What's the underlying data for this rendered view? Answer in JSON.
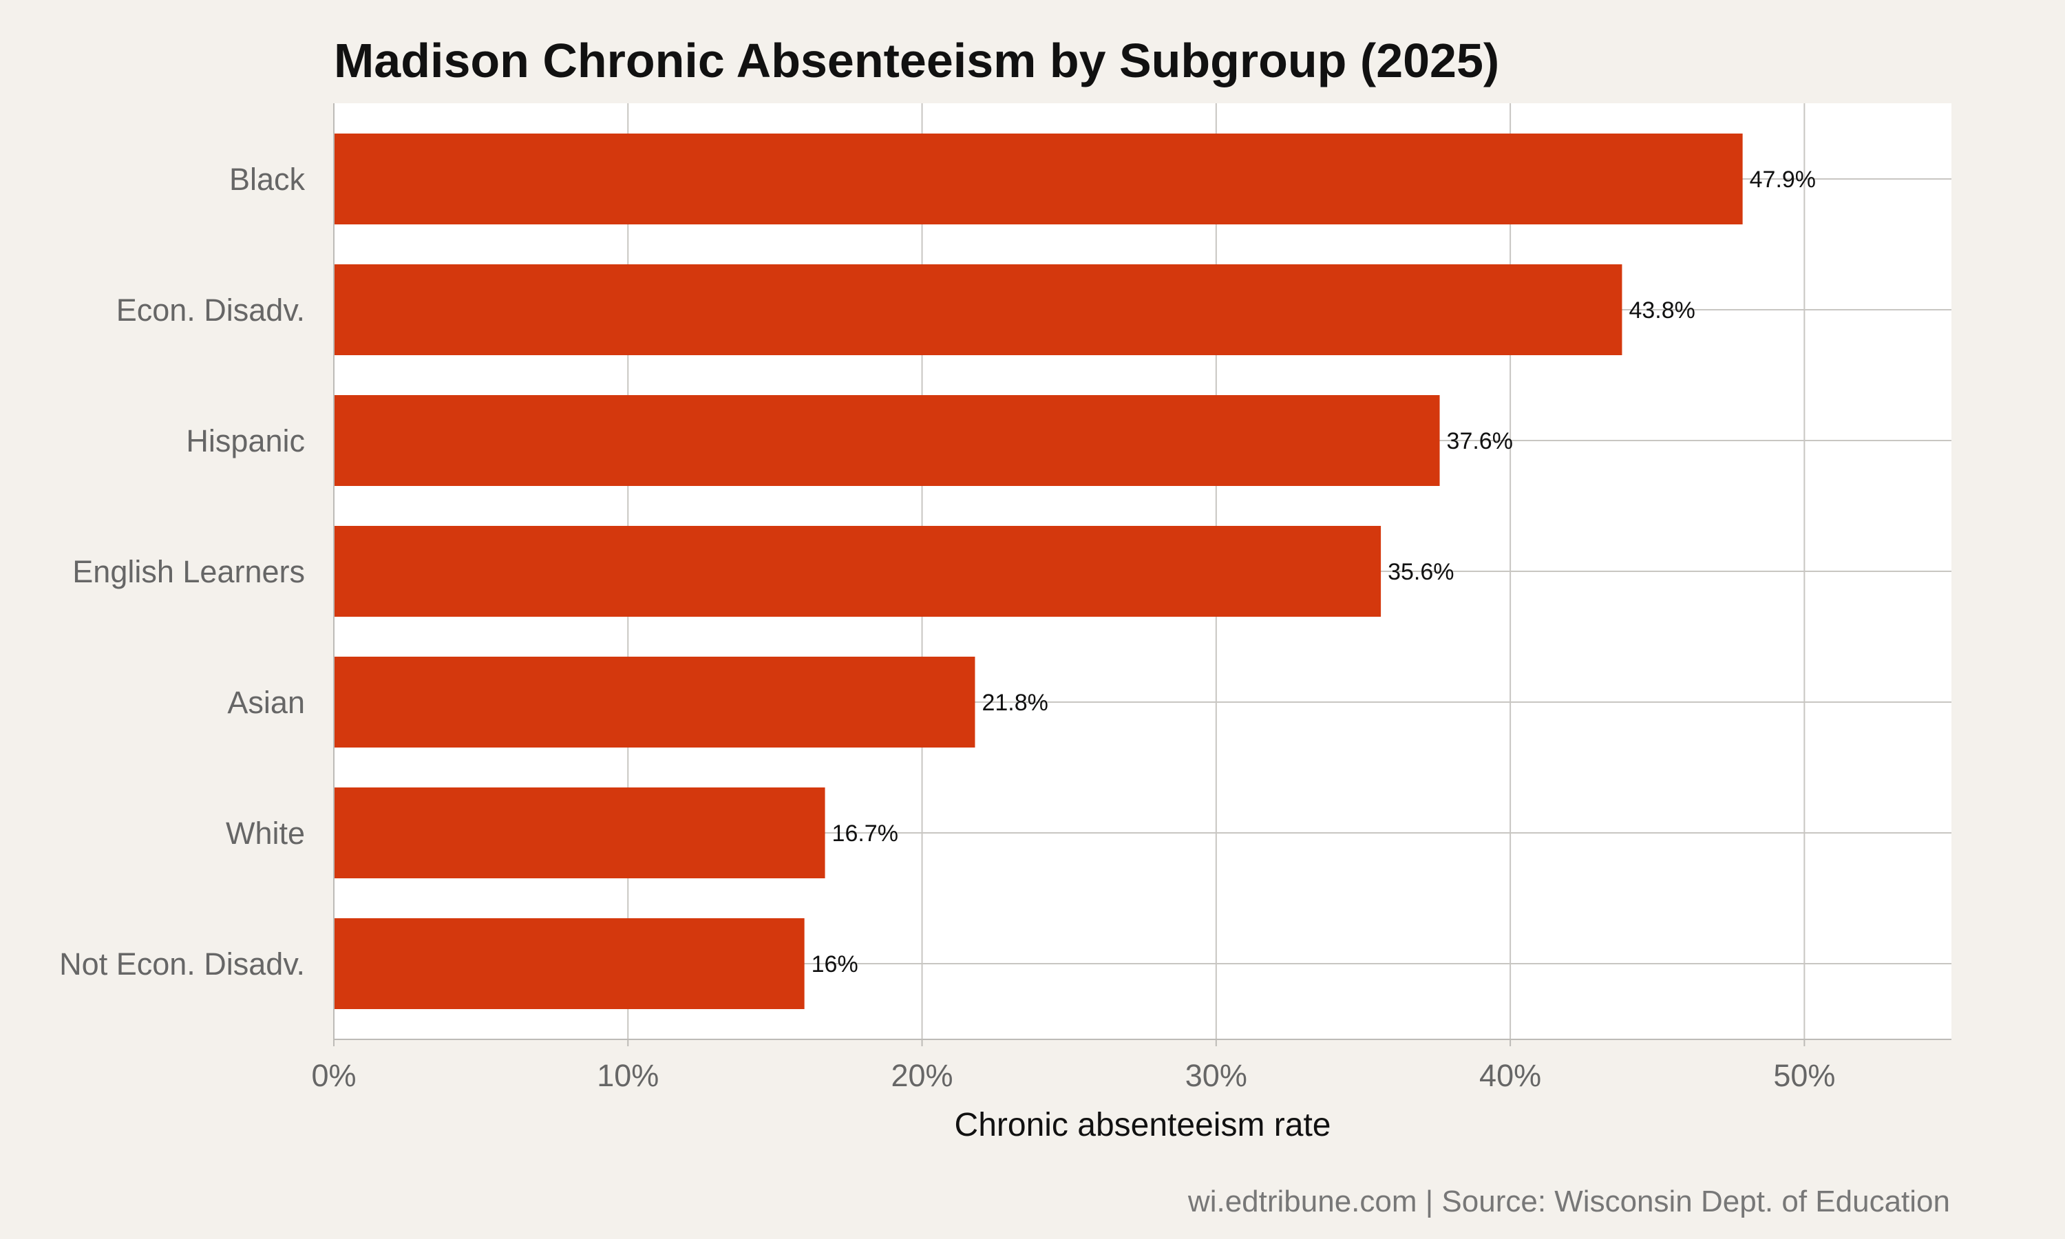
{
  "chart_data": {
    "type": "bar",
    "orientation": "horizontal",
    "title": "Madison Chronic Absenteeism by Subgroup (2025)",
    "xlabel": "Chronic absenteeism rate",
    "ylabel": "",
    "caption": "wi.edtribune.com | Source: Wisconsin Dept. of Education",
    "categories": [
      "Black",
      "Econ. Disadv.",
      "Hispanic",
      "English Learners",
      "Asian",
      "White",
      "Not Econ. Disadv."
    ],
    "values": [
      47.9,
      43.8,
      37.6,
      35.6,
      21.8,
      16.7,
      16.0
    ],
    "value_labels": [
      "47.9%",
      "43.8%",
      "37.6%",
      "35.6%",
      "21.8%",
      "16.7%",
      "16%"
    ],
    "xlim": [
      0,
      55
    ],
    "x_ticks": [
      0,
      10,
      20,
      30,
      40,
      50
    ],
    "x_tick_labels": [
      "0%",
      "10%",
      "20%",
      "30%",
      "40%",
      "50%"
    ],
    "grid": true,
    "legend": "none",
    "bar_color": "#d4380d",
    "panel_background": "#ffffff",
    "plot_background": "#f4f1ec",
    "grid_color": "#c8c6c2"
  }
}
